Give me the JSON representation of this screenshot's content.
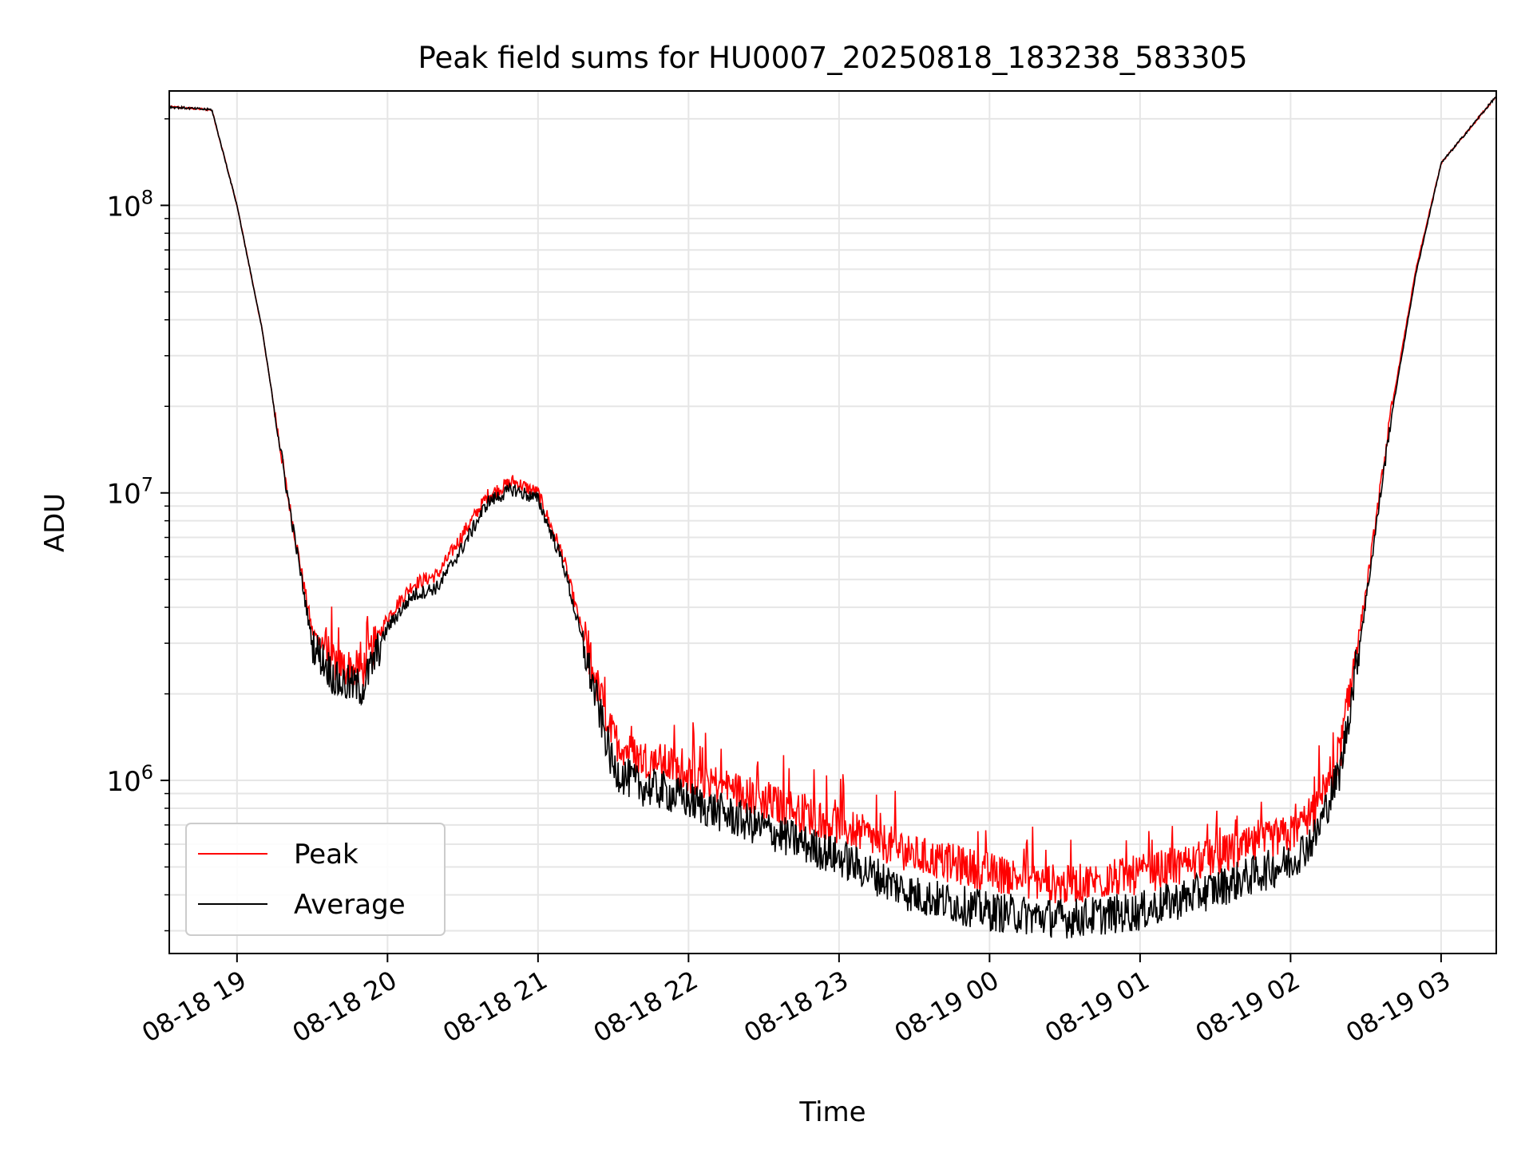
{
  "chart_data": {
    "type": "line",
    "title": "Peak field sums for HU0007_20250818_183238_583305",
    "xlabel": "Time",
    "ylabel": "ADU",
    "yscale": "log",
    "xlim": [
      "2025-08-18 18:33",
      "2025-08-19 03:22"
    ],
    "ylim": [
      250000,
      250000000
    ],
    "x_ticks": [
      "08-18 19",
      "08-18 20",
      "08-18 21",
      "08-18 22",
      "08-18 23",
      "08-19 00",
      "08-19 01",
      "08-19 02",
      "08-19 03"
    ],
    "y_ticks": [
      {
        "base": "10",
        "exp": "6",
        "value": 1000000
      },
      {
        "base": "10",
        "exp": "7",
        "value": 10000000
      },
      {
        "base": "10",
        "exp": "8",
        "value": 100000000
      }
    ],
    "grid": true,
    "legend": {
      "position": "lower-left"
    },
    "series": [
      {
        "name": "Peak",
        "color": "#ff0000",
        "x": [
          "2025-08-18 18:33",
          "2025-08-18 18:50",
          "2025-08-18 19:00",
          "2025-08-18 19:10",
          "2025-08-18 19:20",
          "2025-08-18 19:30",
          "2025-08-18 19:40",
          "2025-08-18 19:50",
          "2025-08-18 20:00",
          "2025-08-18 20:10",
          "2025-08-18 20:20",
          "2025-08-18 20:30",
          "2025-08-18 20:40",
          "2025-08-18 20:50",
          "2025-08-18 21:00",
          "2025-08-18 21:10",
          "2025-08-18 21:20",
          "2025-08-18 21:30",
          "2025-08-18 21:40",
          "2025-08-18 21:50",
          "2025-08-18 22:00",
          "2025-08-18 22:30",
          "2025-08-18 23:00",
          "2025-08-18 23:30",
          "2025-08-19 00:00",
          "2025-08-19 00:30",
          "2025-08-19 01:00",
          "2025-08-19 01:30",
          "2025-08-19 02:00",
          "2025-08-19 02:10",
          "2025-08-19 02:20",
          "2025-08-19 02:30",
          "2025-08-19 02:40",
          "2025-08-19 02:50",
          "2025-08-19 03:00",
          "2025-08-19 03:22"
        ],
        "y": [
          220000000,
          215000000,
          100000000,
          37000000,
          10000000,
          3300000,
          2500000,
          2400000,
          3700000,
          4800000,
          5200000,
          7200000,
          9800000,
          11000000,
          10000000,
          6000000,
          2700000,
          1400000,
          1200000,
          1150000,
          1050000,
          850000,
          700000,
          550000,
          480000,
          430000,
          470000,
          540000,
          650000,
          780000,
          1300000,
          4500000,
          19000000,
          60000000,
          140000000,
          240000000
        ]
      },
      {
        "name": "Average",
        "color": "#000000",
        "x": [
          "2025-08-18 18:33",
          "2025-08-18 18:50",
          "2025-08-18 19:00",
          "2025-08-18 19:10",
          "2025-08-18 19:20",
          "2025-08-18 19:30",
          "2025-08-18 19:40",
          "2025-08-18 19:50",
          "2025-08-18 20:00",
          "2025-08-18 20:10",
          "2025-08-18 20:20",
          "2025-08-18 20:30",
          "2025-08-18 20:40",
          "2025-08-18 20:50",
          "2025-08-18 21:00",
          "2025-08-18 21:10",
          "2025-08-18 21:20",
          "2025-08-18 21:30",
          "2025-08-18 21:40",
          "2025-08-18 21:50",
          "2025-08-18 22:00",
          "2025-08-18 22:30",
          "2025-08-18 23:00",
          "2025-08-18 23:30",
          "2025-08-19 00:00",
          "2025-08-19 00:30",
          "2025-08-19 01:00",
          "2025-08-19 01:30",
          "2025-08-19 02:00",
          "2025-08-19 02:10",
          "2025-08-19 02:20",
          "2025-08-19 02:30",
          "2025-08-19 02:40",
          "2025-08-19 02:50",
          "2025-08-19 03:00",
          "2025-08-19 03:22"
        ],
        "y": [
          220000000,
          215000000,
          100000000,
          37000000,
          10000000,
          3000000,
          2200000,
          2100000,
          3400000,
          4400000,
          4700000,
          6500000,
          9300000,
          10300000,
          9500000,
          5700000,
          2500000,
          1100000,
          960000,
          920000,
          850000,
          680000,
          540000,
          400000,
          350000,
          330000,
          350000,
          420000,
          520000,
          640000,
          1100000,
          4200000,
          18000000,
          58000000,
          140000000,
          240000000
        ]
      }
    ]
  }
}
